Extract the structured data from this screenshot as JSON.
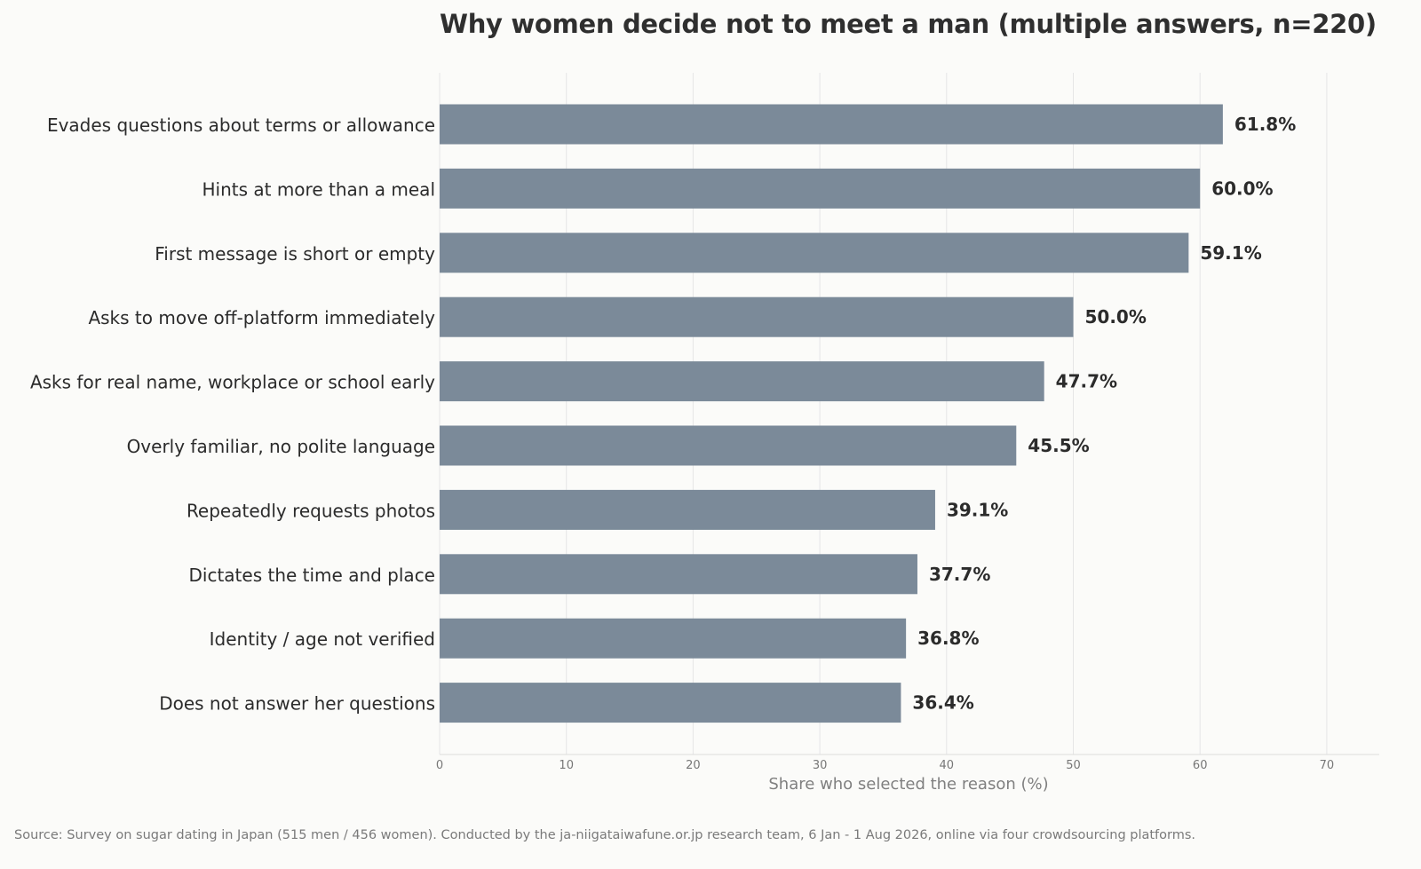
{
  "chart_data": {
    "type": "bar",
    "orientation": "horizontal",
    "title": "Why women decide not to meet a man (multiple answers, n=220)",
    "xlabel": "Share who selected the reason (%)",
    "ylabel": "",
    "xlim": [
      0,
      74
    ],
    "xticks": [
      0,
      10,
      20,
      30,
      40,
      50,
      60,
      70
    ],
    "grid": "vertical",
    "bar_color": "#7b8a99",
    "categories": [
      "Evades questions about terms or allowance",
      "Hints at more than a meal",
      "First message is short or empty",
      "Asks to move off-platform immediately",
      "Asks for real name, workplace or school early",
      "Overly familiar, no polite language",
      "Repeatedly requests photos",
      "Dictates the time and place",
      "Identity / age not verified",
      "Does not answer her questions"
    ],
    "values": [
      61.8,
      60.0,
      59.1,
      50.0,
      47.7,
      45.5,
      39.1,
      37.7,
      36.8,
      36.4
    ],
    "data_labels": [
      "61.8%",
      "60.0%",
      "59.1%",
      "50.0%",
      "47.7%",
      "45.5%",
      "39.1%",
      "37.7%",
      "36.8%",
      "36.4%"
    ]
  },
  "source": "Source: Survey on sugar dating in Japan (515 men / 456 women). Conducted by the ja-niigataiwafune.or.jp research team, 6 Jan - 1 Aug 2026, online via four crowdsourcing platforms.",
  "colors": {
    "background": "#fbfbf9",
    "grid": "#e6e6e6",
    "text": "#2b2b2b",
    "muted": "#808080"
  }
}
